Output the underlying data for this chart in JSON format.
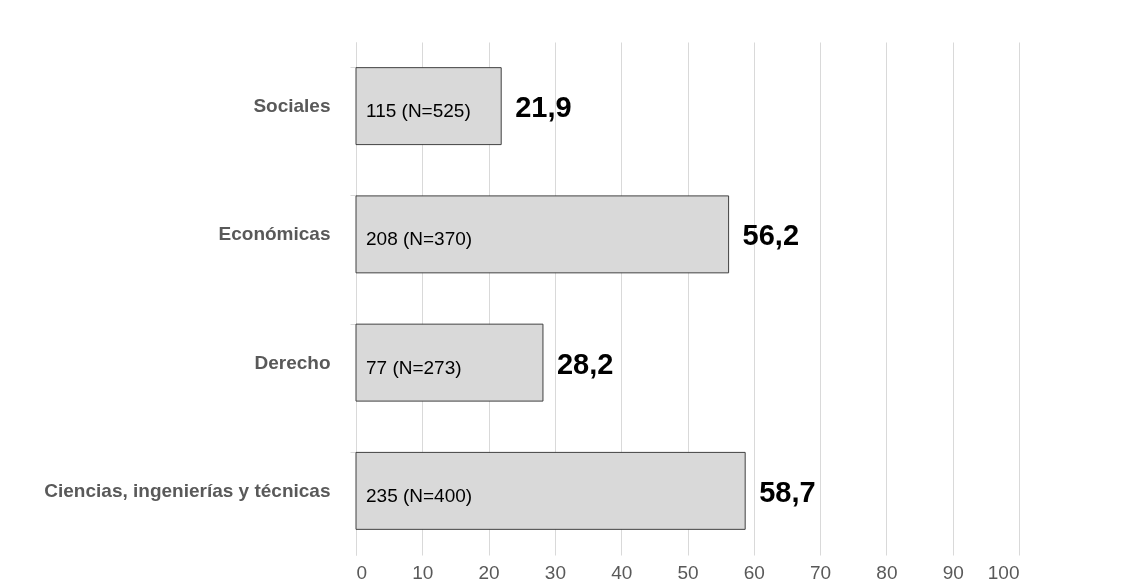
{
  "chart_data": {
    "type": "bar",
    "orientation": "horizontal",
    "categories": [
      "Sociales",
      "Económicas",
      "Derecho",
      "Ciencias, ingenierías y técnicas"
    ],
    "values": [
      21.9,
      56.2,
      28.2,
      58.7
    ],
    "value_labels": [
      "21,9",
      "56,2",
      "28,2",
      "58,7"
    ],
    "color": "#d9d9d9",
    "xlim": [
      0,
      100
    ],
    "xticks": [
      0,
      10,
      20,
      30,
      40,
      50,
      60,
      70,
      80,
      90,
      100
    ],
    "grid": "x",
    "legend": false,
    "annotations": [
      "115 (N=525)",
      "208 (N=370)",
      "77 (N=273)",
      "235 (N=400)"
    ]
  }
}
